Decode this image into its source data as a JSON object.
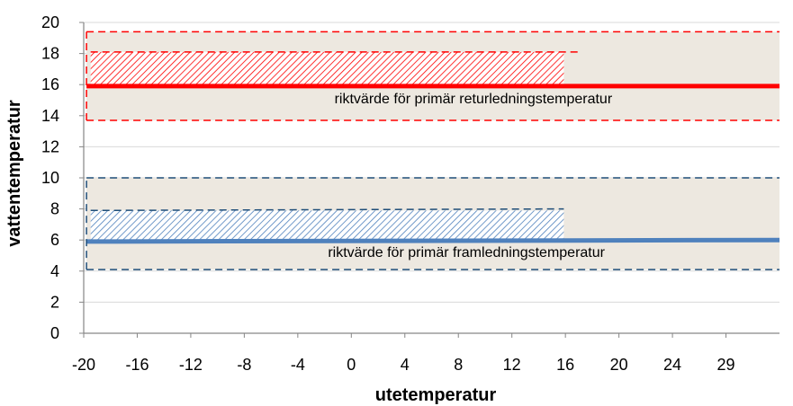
{
  "chart_data": {
    "type": "line",
    "xlabel": "utetemperatur",
    "ylabel": "vattentemperatur",
    "x_ticks": [
      "-20",
      "-16",
      "-12",
      "-8",
      "-4",
      "0",
      "4",
      "8",
      "12",
      "16",
      "20",
      "24",
      "29"
    ],
    "y_ticks": [
      0,
      2,
      4,
      6,
      8,
      10,
      12,
      14,
      16,
      18,
      20
    ],
    "xlim": [
      -20,
      30
    ],
    "ylim": [
      0,
      20
    ],
    "grid": "horizontal",
    "colors": {
      "return": "#ff0000",
      "supply": "#4f81bd",
      "supply_dash": "#1f4e79",
      "band": "#ede8e0",
      "grid": "#d9d9d9"
    },
    "bands": [
      {
        "label": "return-band",
        "y": [
          13.7,
          19.4
        ],
        "x": [
          -19.8,
          30
        ]
      },
      {
        "label": "supply-band",
        "y": [
          4.1,
          10.0
        ],
        "x": [
          -19.8,
          30
        ]
      }
    ],
    "hatched_areas": [
      {
        "label": "return-hatch",
        "x": [
          -19.5,
          14.5
        ],
        "y": [
          15.9,
          18.1
        ]
      },
      {
        "label": "supply-hatch",
        "x": [
          -19.5,
          14.5
        ],
        "y": [
          6.0,
          7.9
        ]
      }
    ],
    "series": [
      {
        "color": "return",
        "style": "solid",
        "width": 5,
        "points": [
          [
            -19.8,
            15.9
          ],
          [
            30,
            15.9
          ]
        ]
      },
      {
        "color": "supply",
        "style": "solid",
        "width": 5,
        "points": [
          [
            -19.8,
            5.9
          ],
          [
            30,
            6.0
          ]
        ]
      },
      {
        "color": "return",
        "style": "dashed",
        "width": 1.5,
        "points": [
          [
            -19.8,
            19.4
          ],
          [
            30,
            19.4
          ]
        ]
      },
      {
        "color": "return",
        "style": "dashed",
        "width": 1.5,
        "points": [
          [
            -19.8,
            13.7
          ],
          [
            30,
            13.7
          ]
        ]
      },
      {
        "color": "return",
        "style": "dashed",
        "width": 1.5,
        "points": [
          [
            -19.5,
            18.1
          ],
          [
            15.5,
            18.1
          ]
        ]
      },
      {
        "color": "return",
        "style": "dashed",
        "width": 1.5,
        "points": [
          [
            -19.8,
            13.7
          ],
          [
            -19.8,
            19.4
          ]
        ]
      },
      {
        "color": "supply_dash",
        "style": "dashed",
        "width": 1.5,
        "points": [
          [
            -19.8,
            10.0
          ],
          [
            30,
            10.0
          ]
        ]
      },
      {
        "color": "supply_dash",
        "style": "dashed",
        "width": 1.5,
        "points": [
          [
            -19.8,
            4.1
          ],
          [
            30,
            4.1
          ]
        ]
      },
      {
        "color": "supply_dash",
        "style": "dashed",
        "width": 1.5,
        "points": [
          [
            -19.5,
            7.9
          ],
          [
            14.5,
            8.0
          ]
        ]
      },
      {
        "color": "supply_dash",
        "style": "dashed",
        "width": 1.5,
        "points": [
          [
            -19.8,
            4.1
          ],
          [
            -19.8,
            10.0
          ]
        ]
      }
    ],
    "annotations": [
      {
        "name": "return-annotation",
        "text": "riktvärde för primär returledningstemperatur",
        "x": 8,
        "y": 14.8
      },
      {
        "name": "supply-annotation",
        "text": "riktvärde för primär framledningstemperatur",
        "x": 7.5,
        "y": 4.9
      }
    ]
  }
}
